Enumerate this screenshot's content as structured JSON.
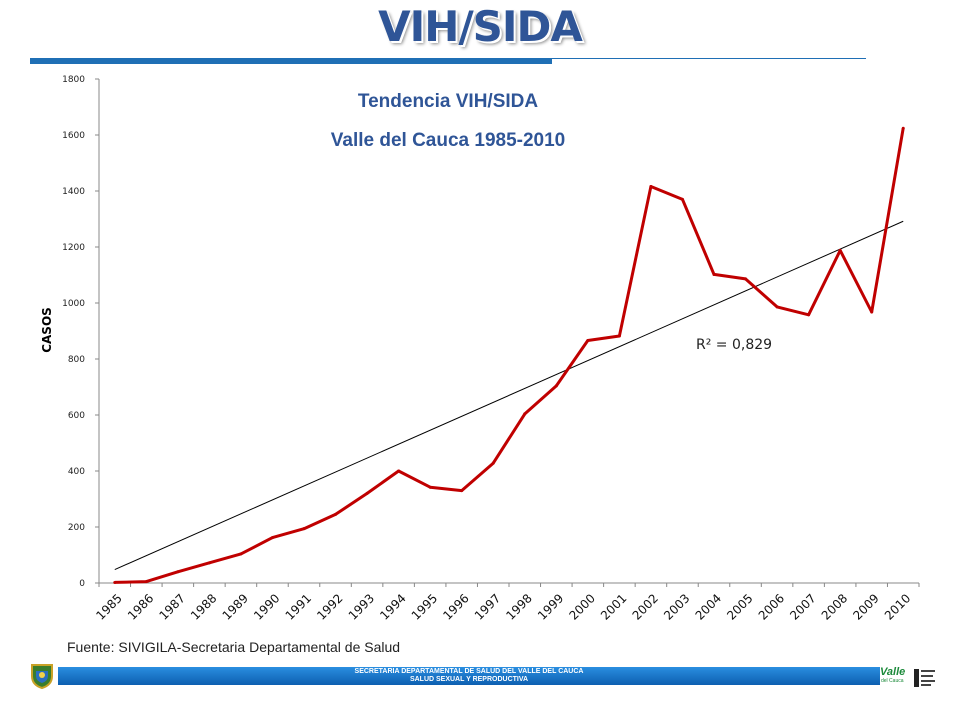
{
  "slide": {
    "title": "VIH/SIDA",
    "source": "Fuente: SIVIGILA-Secretaria Departamental de Salud",
    "footer_line1": "SECRETARIA DEPARTAMENTAL DE SALUD DEL VALLE DEL CAUCA",
    "footer_line2": "SALUD SEXUAL Y REPRODUCTIVA",
    "logo_valle": "Valle",
    "logo_valle_sub": "del Cauca"
  },
  "colors": {
    "title": "#2f5597",
    "chart_title": "#2f5597",
    "series": "#c00000",
    "trendline": "#000000",
    "footer_bar": "#1a76cc"
  },
  "chart_data": {
    "type": "line",
    "title": "Tendencia VIH/SIDA",
    "subtitle": "Valle del Cauca 1985-2010",
    "xlabel": "",
    "ylabel": "CASOS",
    "ylim": [
      0,
      1800
    ],
    "yticks": [
      0,
      200,
      400,
      600,
      800,
      1000,
      1200,
      1400,
      1600,
      1800
    ],
    "grid": false,
    "categories": [
      "1985",
      "1986",
      "1987",
      "1988",
      "1989",
      "1990",
      "1991",
      "1992",
      "1993",
      "1994",
      "1995",
      "1996",
      "1997",
      "1998",
      "1999",
      "2000",
      "2001",
      "2002",
      "2003",
      "2004",
      "2005",
      "2006",
      "2007",
      "2008",
      "2009",
      "2010"
    ],
    "series": [
      {
        "values": [
          2,
          5,
          40,
          72,
          104,
          162,
          194,
          245,
          320,
          400,
          342,
          330,
          428,
          604,
          704,
          866,
          882,
          1416,
          1370,
          1102,
          1086,
          986,
          958,
          1188,
          968,
          1624
        ]
      }
    ],
    "trendline": {
      "type": "linear",
      "start": 48,
      "end": 1292,
      "label": "R² = 0,829"
    }
  }
}
